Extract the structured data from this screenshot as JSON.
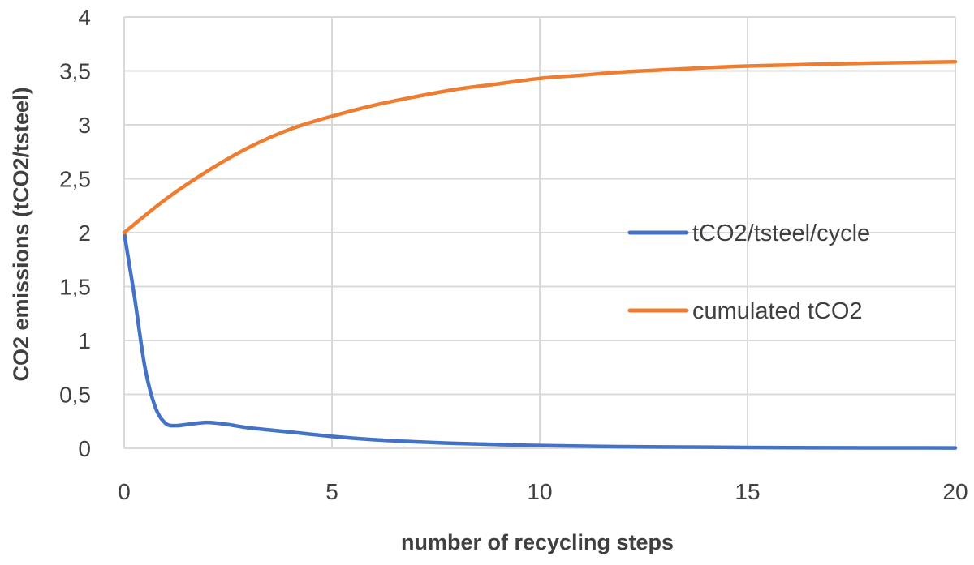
{
  "chart_data": {
    "type": "line",
    "title": "",
    "xlabel": "number of recycling steps",
    "ylabel": "CO2 emissions (tCO2/tsteel)",
    "xlim": [
      0,
      20
    ],
    "ylim": [
      0,
      4
    ],
    "x_ticks": [
      {
        "value": 0,
        "label": "0"
      },
      {
        "value": 5,
        "label": "5"
      },
      {
        "value": 10,
        "label": "10"
      },
      {
        "value": 15,
        "label": "15"
      },
      {
        "value": 20,
        "label": "20"
      }
    ],
    "y_ticks": [
      {
        "value": 0,
        "label": "0"
      },
      {
        "value": 0.5,
        "label": "0,5"
      },
      {
        "value": 1,
        "label": "1"
      },
      {
        "value": 1.5,
        "label": "1,5"
      },
      {
        "value": 2,
        "label": "2"
      },
      {
        "value": 2.5,
        "label": "2,5"
      },
      {
        "value": 3,
        "label": "3"
      },
      {
        "value": 3.5,
        "label": "3,5"
      },
      {
        "value": 4,
        "label": "4"
      }
    ],
    "grid": true,
    "legend_position": "right",
    "series": [
      {
        "name": "tCO2/tsteel/cycle",
        "color": "#4472c4",
        "x": [
          0,
          0.25,
          0.5,
          0.75,
          1,
          1.25,
          1.5,
          2,
          2.5,
          3,
          4,
          5,
          6,
          7,
          8,
          9,
          10,
          12,
          14,
          16,
          18,
          20
        ],
        "y": [
          2.0,
          1.4,
          0.75,
          0.38,
          0.23,
          0.21,
          0.22,
          0.24,
          0.22,
          0.19,
          0.15,
          0.11,
          0.08,
          0.06,
          0.045,
          0.035,
          0.025,
          0.015,
          0.01,
          0.006,
          0.004,
          0.003
        ]
      },
      {
        "name": "cumulated tCO2",
        "color": "#ed7d31",
        "x": [
          0,
          1,
          2,
          3,
          4,
          5,
          6,
          7,
          8,
          9,
          10,
          11,
          12,
          13,
          14,
          15,
          16,
          17,
          18,
          19,
          20
        ],
        "y": [
          2.0,
          2.31,
          2.57,
          2.79,
          2.96,
          3.08,
          3.18,
          3.26,
          3.33,
          3.38,
          3.43,
          3.46,
          3.49,
          3.51,
          3.53,
          3.545,
          3.555,
          3.565,
          3.572,
          3.578,
          3.585
        ]
      }
    ]
  }
}
